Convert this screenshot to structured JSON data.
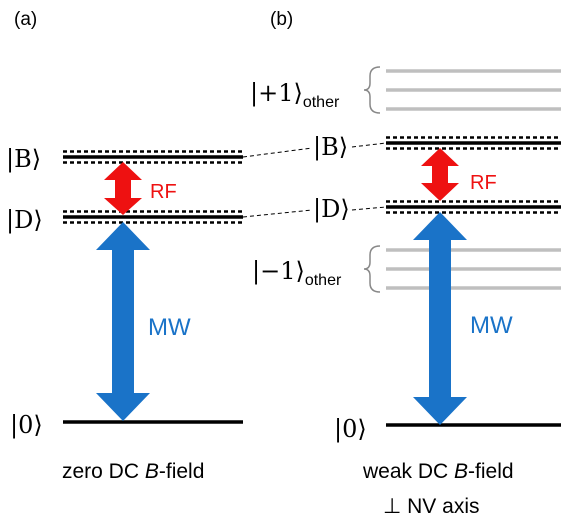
{
  "panels": [
    {
      "id": "a",
      "panel_label": "(a)",
      "levels": {
        "B": "|B⟩",
        "D": "|D⟩",
        "ground": "|0⟩"
      },
      "transitions": {
        "rf": "RF",
        "mw": "MW"
      },
      "caption_line1_prefix": "zero DC ",
      "caption_line1_italic": "B",
      "caption_line1_suffix": "-field",
      "caption_line2": ""
    },
    {
      "id": "b",
      "panel_label": "(b)",
      "levels": {
        "B": "|B⟩",
        "D": "|D⟩",
        "ground": "|0⟩"
      },
      "other_levels": {
        "upper_main": "|+1⟩",
        "upper_sub": "other",
        "lower_main": "|−1⟩",
        "lower_sub": "other"
      },
      "transitions": {
        "rf": "RF",
        "mw": "MW"
      },
      "caption_line1_prefix": "weak DC ",
      "caption_line1_italic": "B",
      "caption_line1_suffix": "-field",
      "caption_line2": "⊥ NV axis"
    }
  ],
  "colors": {
    "level": "#000000",
    "other_level": "#bfbfbf",
    "rf_arrow": "#ee1111",
    "mw_arrow": "#1a73c8",
    "text": "#000000"
  }
}
